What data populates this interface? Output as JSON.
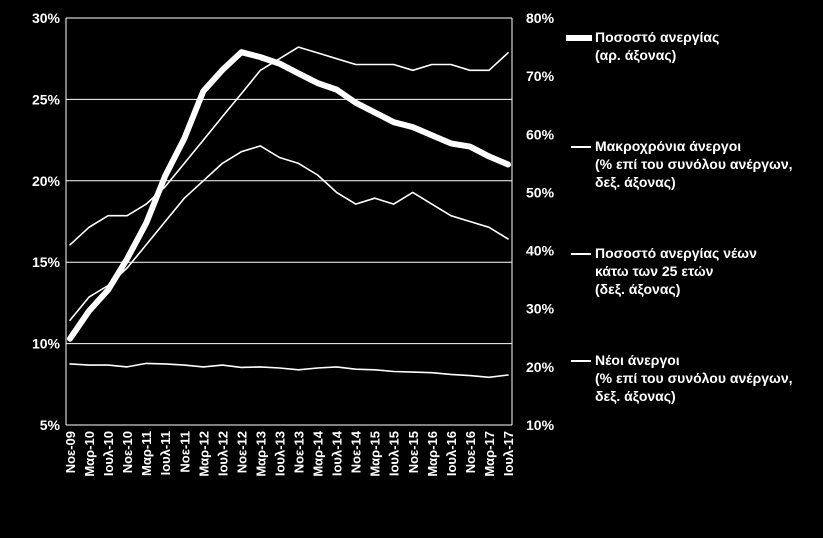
{
  "chart_data": {
    "type": "line",
    "title": "",
    "x": [
      "Νοε-09",
      "Μαρ-10",
      "Ιουλ-10",
      "Νοε-10",
      "Μαρ-11",
      "Ιουλ-11",
      "Νοε-11",
      "Μαρ-12",
      "Ιουλ-12",
      "Νοε-12",
      "Μαρ-13",
      "Ιουλ-13",
      "Νοε-13",
      "Μαρ-14",
      "Ιουλ-14",
      "Νοε-14",
      "Μαρ-15",
      "Ιουλ-15",
      "Νοε-15",
      "Μαρ-16",
      "Ιουλ-16",
      "Νοε-16",
      "Μαρ-17",
      "Ιουλ-17"
    ],
    "y_left": {
      "ticks": [
        "5%",
        "10%",
        "15%",
        "20%",
        "25%",
        "30%"
      ],
      "range": [
        5,
        30
      ]
    },
    "y_right": {
      "ticks": [
        "10%",
        "20%",
        "30%",
        "40%",
        "50%",
        "60%",
        "70%",
        "80%"
      ],
      "range": [
        10,
        80
      ]
    },
    "grid": "horizontal",
    "legend_position": "right",
    "series": [
      {
        "name": "Ποσοστό ανεργίας\n(αρ. άξονας)",
        "axis": "left",
        "style": "thick",
        "values": [
          10.3,
          12.0,
          13.3,
          15.2,
          17.4,
          20.3,
          22.6,
          25.5,
          26.8,
          27.9,
          27.6,
          27.2,
          26.6,
          26.0,
          25.6,
          24.8,
          24.2,
          23.6,
          23.3,
          22.8,
          22.3,
          22.1,
          21.5,
          21.0
        ]
      },
      {
        "name": "Μακροχρόνια άνεργοι\n(% επί του συνόλου ανέργων,\nδεξ. άξονας)",
        "axis": "right",
        "style": "thin",
        "values": [
          41,
          44,
          46,
          46,
          48,
          51,
          55,
          59,
          63,
          67,
          71,
          73,
          75,
          74,
          73,
          72,
          72,
          72,
          71,
          72,
          72,
          71,
          71,
          74
        ]
      },
      {
        "name": "Ποσοστό ανεργίας νέων\nκάτω των 25 ετών\n(δεξ. άξονας)",
        "axis": "right",
        "style": "thin",
        "values": [
          28,
          32,
          34,
          37,
          41,
          45,
          49,
          52,
          55,
          57,
          58,
          56,
          55,
          53,
          50,
          48,
          49,
          48,
          50,
          48,
          46,
          45,
          44,
          42
        ]
      },
      {
        "name": "Νέοι άνεργοι\n(% επί του συνόλου ανέργων,\nδεξ. άξονας)",
        "axis": "right",
        "style": "thin",
        "values": [
          20.5,
          20.3,
          20.3,
          20.0,
          20.6,
          20.5,
          20.3,
          20.0,
          20.3,
          19.9,
          20.0,
          19.8,
          19.5,
          19.8,
          20.0,
          19.6,
          19.5,
          19.2,
          19.1,
          19.0,
          18.7,
          18.5,
          18.2,
          18.6
        ]
      }
    ]
  }
}
